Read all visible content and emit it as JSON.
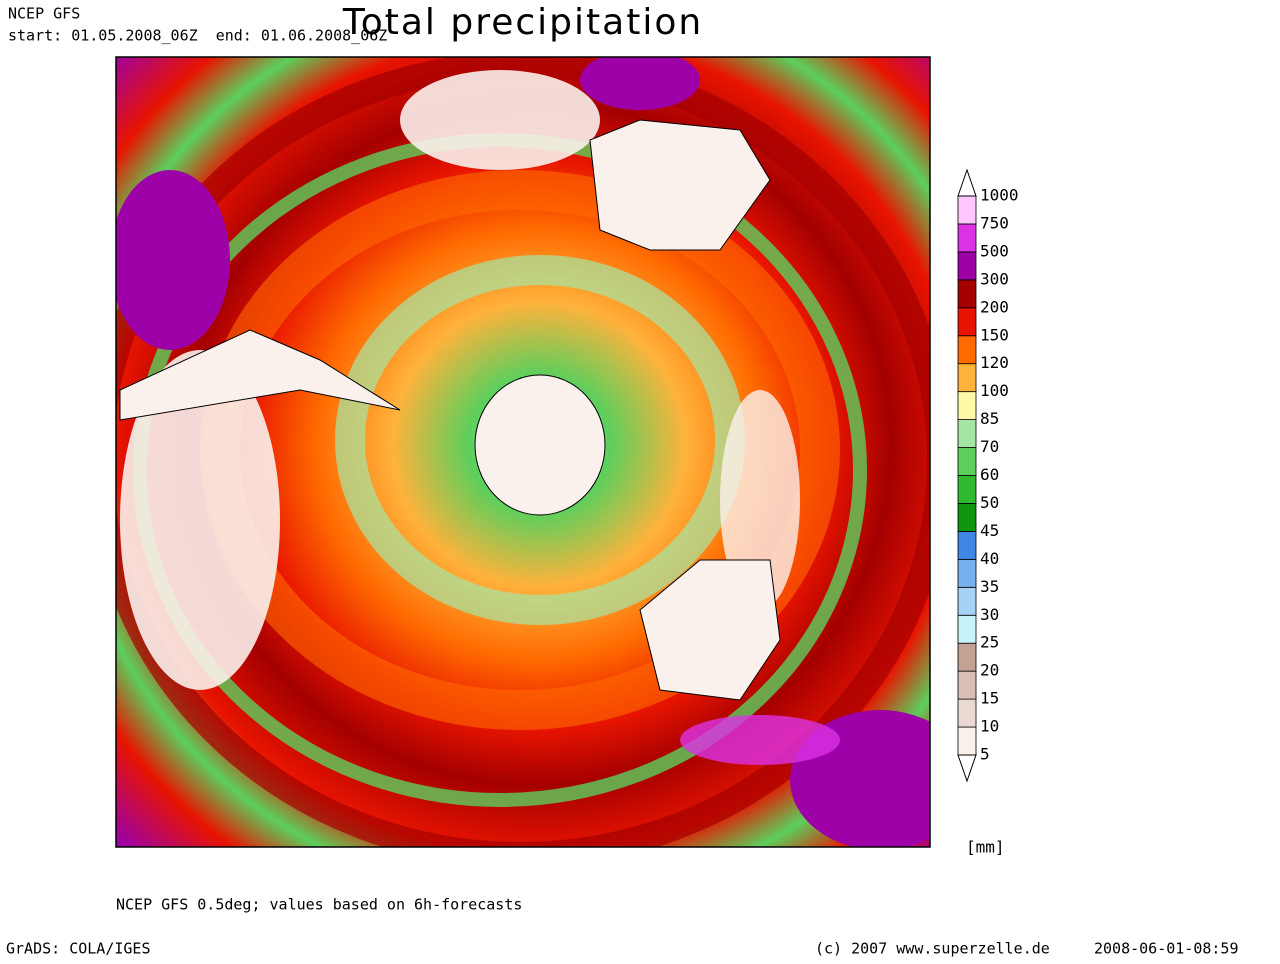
{
  "header": {
    "model": "NCEP GFS",
    "period": "start: 01.05.2008_06Z  end: 01.06.2008_06Z"
  },
  "title": "Total precipitation",
  "legend": {
    "levels": [
      5,
      10,
      15,
      20,
      25,
      30,
      35,
      40,
      45,
      50,
      60,
      70,
      85,
      100,
      120,
      150,
      200,
      300,
      500,
      750,
      1000
    ],
    "colors": [
      "#fbf1ec",
      "#ead9d2",
      "#d9c0b6",
      "#c3a193",
      "#c8f2fa",
      "#a6d2f6",
      "#78b2ee",
      "#3f86e6",
      "#0f960f",
      "#2fba2f",
      "#5ccf5c",
      "#a4e7a4",
      "#fff8a6",
      "#ffb23c",
      "#ff6a00",
      "#e81400",
      "#a40000",
      "#9c00a6",
      "#dc32e6",
      "#ffc6ff"
    ],
    "unit": "[mm]"
  },
  "footnote": "NCEP GFS 0.5deg; values based on 6h-forecasts",
  "credits": {
    "software": "GrADS: COLA/IGES",
    "copyright": "(c) 2007 www.superzelle.de",
    "timestamp": "2008-06-01-08:59"
  }
}
